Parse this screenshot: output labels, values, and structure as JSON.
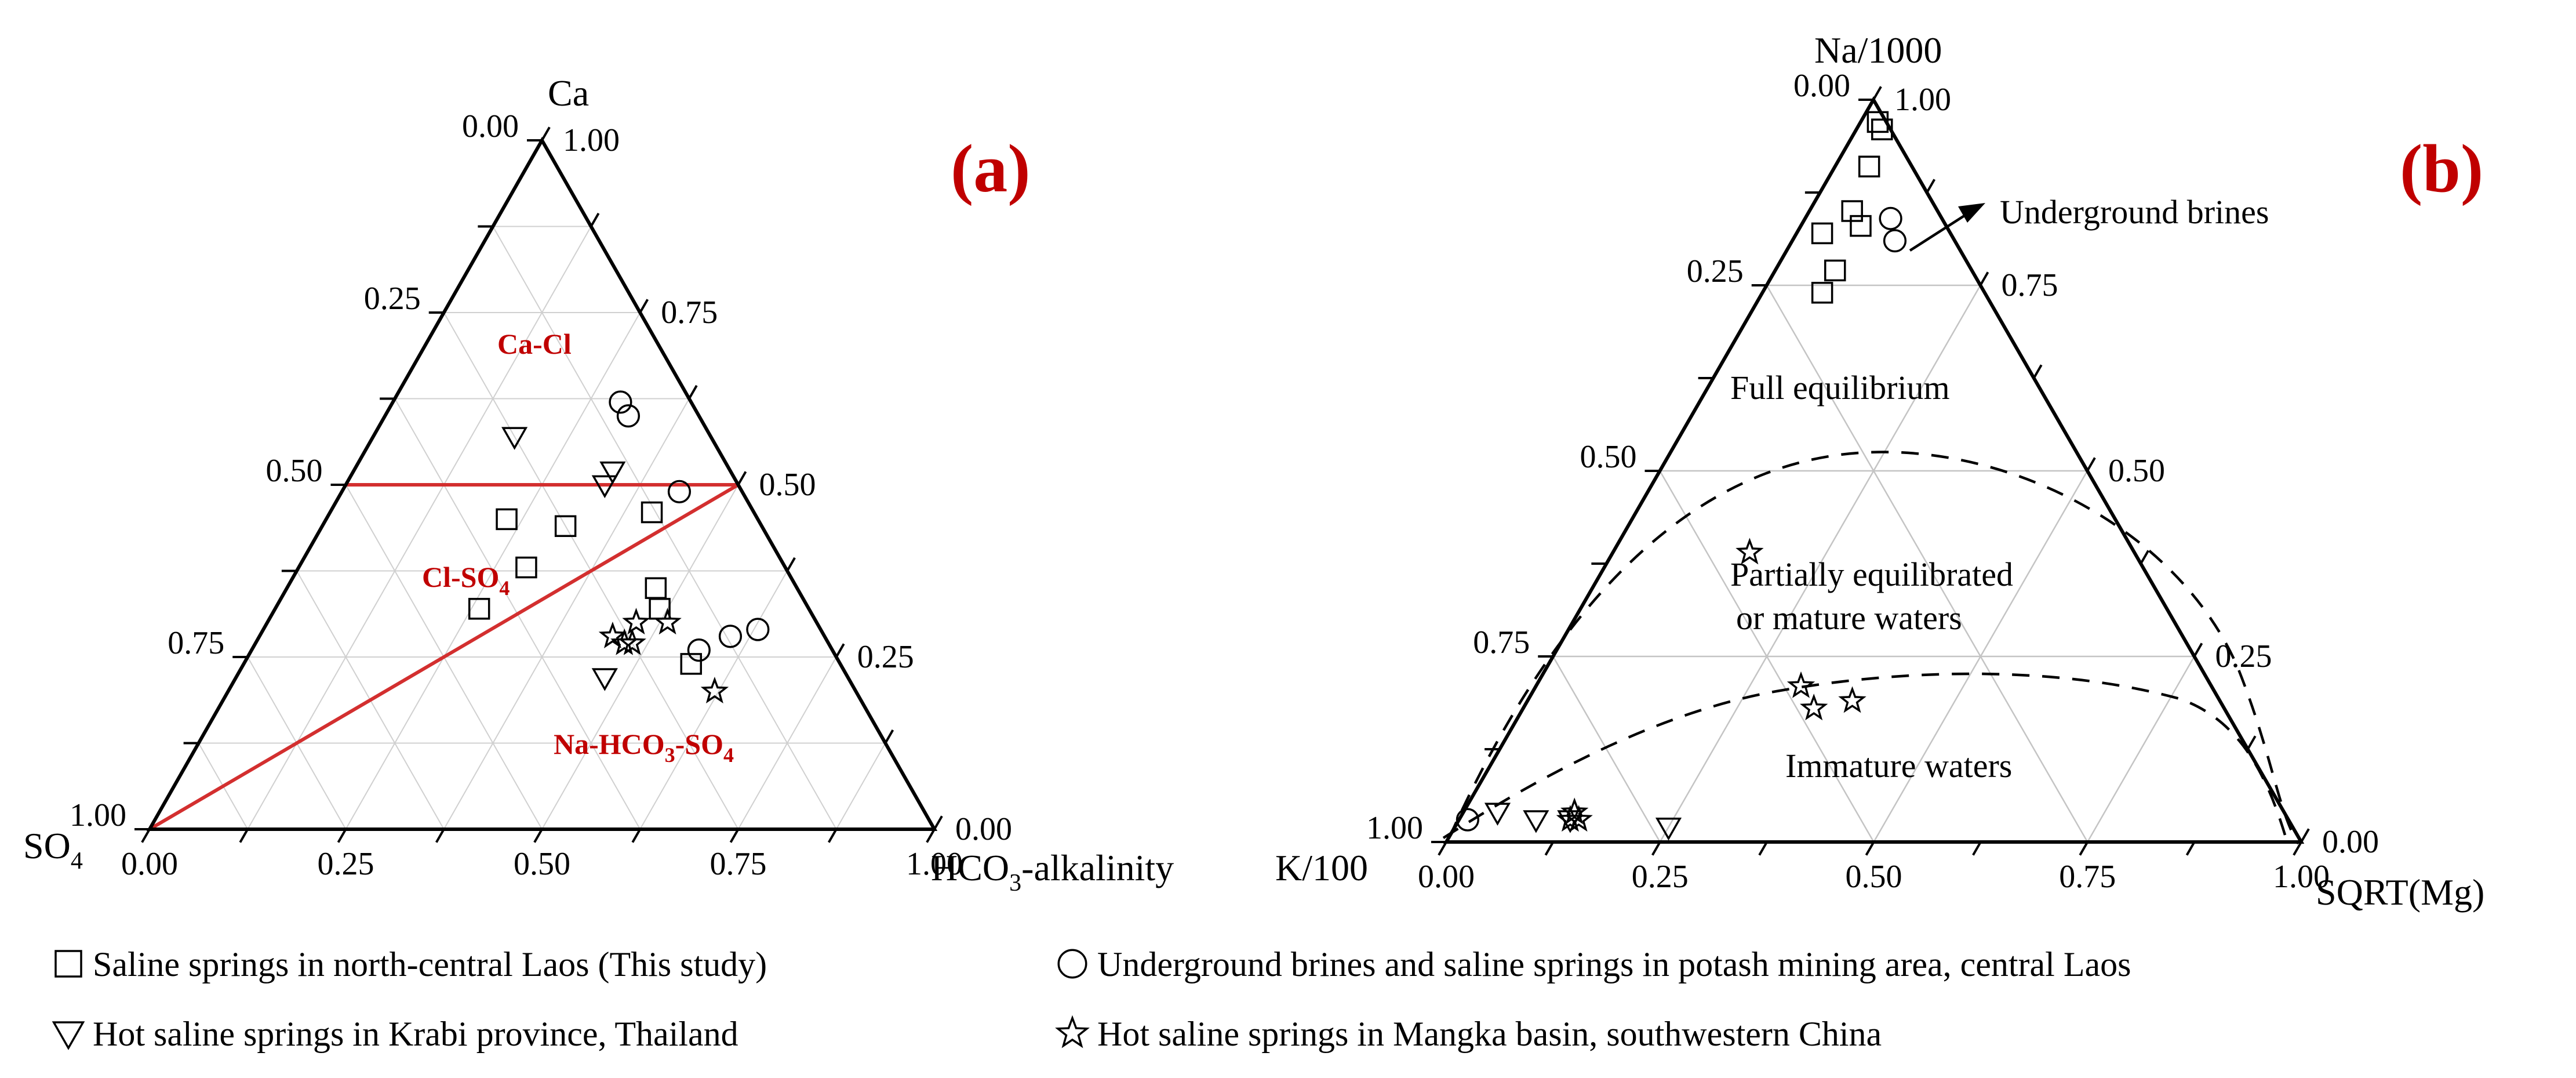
{
  "chart_data": [
    {
      "type": "ternary-scatter",
      "panel": "(a)",
      "axes": {
        "top": "Ca",
        "left": "SO4",
        "right": "HCO3-alkalinity",
        "left_edge_ticks": [
          "0.00",
          "0.25",
          "0.50",
          "0.75",
          "1.00"
        ],
        "right_edge_ticks": [
          "1.00",
          "0.75",
          "0.50",
          "0.25",
          "0.00"
        ],
        "bottom_edge_ticks": [
          "0.00",
          "0.25",
          "0.50",
          "0.75",
          "1.00"
        ]
      },
      "regions": [
        {
          "label": "Ca-Cl"
        },
        {
          "label": "Cl-SO",
          "sub": "4"
        },
        {
          "label": "Na-HCO",
          "sub": "3",
          "tail": "-SO",
          "sub2": "4"
        }
      ],
      "boundary_lines": [
        {
          "from": [
            0.5,
            0.5,
            0.0
          ],
          "to": [
            0.5,
            0.0,
            0.5
          ]
        },
        {
          "from": [
            0.0,
            1.0,
            0.0
          ],
          "to": [
            0.5,
            0.0,
            0.5
          ]
        }
      ],
      "series": [
        {
          "name": "Saline springs in north-central Laos (This study)",
          "marker": "square",
          "points": [
            [
              0.46,
              0.41
            ],
            [
              0.44,
              0.31
            ],
            [
              0.45,
              0.23
            ],
            [
              0.38,
              0.29
            ],
            [
              0.35,
              0.47
            ],
            [
              0.32,
              0.26
            ],
            [
              0.32,
              0.49
            ],
            [
              0.24,
              0.57
            ]
          ]
        },
        {
          "name": "Underground brines and saline springs in potash mining area, central Laos",
          "marker": "circle",
          "points": [
            [
              0.6,
              0.31
            ],
            [
              0.62,
              0.29
            ],
            [
              0.49,
              0.43
            ],
            [
              0.28,
              0.6
            ],
            [
              0.29,
              0.63
            ],
            [
              0.26,
              0.57
            ]
          ]
        },
        {
          "name": "Hot saline springs in Krabi province, Thailand",
          "marker": "triangle-down",
          "points": [
            [
              0.57,
              0.18
            ],
            [
              0.52,
              0.33
            ],
            [
              0.5,
              0.33
            ],
            [
              0.22,
              0.47
            ]
          ]
        },
        {
          "name": "Hot saline springs in Mangka basin, southwestern China",
          "marker": "star",
          "points": [
            [
              0.27,
              0.47
            ],
            [
              0.3,
              0.47
            ],
            [
              0.28,
              0.45
            ],
            [
              0.27,
              0.48
            ],
            [
              0.3,
              0.51
            ],
            [
              0.2,
              0.62
            ]
          ]
        }
      ]
    },
    {
      "type": "ternary-scatter",
      "panel": "(b)",
      "axes": {
        "top": "Na/1000",
        "left": "K/100",
        "right": "SQRT(Mg)",
        "left_edge_ticks": [
          "0.00",
          "0.25",
          "0.50",
          "0.75",
          "1.00"
        ],
        "right_edge_ticks": [
          "1.00",
          "0.75",
          "0.50",
          "0.25",
          "0.00"
        ],
        "bottom_edge_ticks": [
          "0.00",
          "0.25",
          "0.50",
          "0.75",
          "1.00"
        ]
      },
      "zones": [
        "Full equilibrium",
        "Partially equilibrated",
        "or mature waters",
        "Immature waters"
      ],
      "annotation": "Underground brines",
      "series": [
        {
          "name": "Saline springs in north-central Laos (This study)",
          "marker": "square",
          "points": [
            [
              0.97,
              0.02
            ],
            [
              0.96,
              0.03
            ],
            [
              0.91,
              0.04
            ],
            [
              0.82,
              0.03
            ],
            [
              0.85,
              0.05
            ],
            [
              0.77,
              0.07
            ],
            [
              0.74,
              0.07
            ],
            [
              0.83,
              0.07
            ]
          ]
        },
        {
          "name": "Underground brines and saline springs in potash mining area, central Laos",
          "marker": "circle",
          "points": [
            [
              0.84,
              0.1
            ],
            [
              0.81,
              0.12
            ],
            [
              0.03,
              0.01
            ]
          ]
        },
        {
          "name": "Hot saline springs in Krabi province, Thailand",
          "marker": "triangle-down",
          "points": [
            [
              0.02,
              0.25
            ],
            [
              0.04,
              0.04
            ],
            [
              0.03,
              0.09
            ],
            [
              0.03,
              0.13
            ]
          ]
        },
        {
          "name": "Hot saline springs in Mangka basin, southwestern China",
          "marker": "star",
          "points": [
            [
              0.39,
              0.16
            ],
            [
              0.18,
              0.34
            ],
            [
              0.21,
              0.31
            ],
            [
              0.19,
              0.38
            ],
            [
              0.04,
              0.13
            ],
            [
              0.03,
              0.13
            ],
            [
              0.03,
              0.14
            ]
          ]
        }
      ]
    }
  ],
  "legend": [
    {
      "marker": "square",
      "label": "Saline springs in north-central Laos (This study)"
    },
    {
      "marker": "circle",
      "label": "Underground brines and saline springs in potash mining area, central Laos"
    },
    {
      "marker": "triangle-down",
      "label": "Hot saline springs in Krabi province, Thailand"
    },
    {
      "marker": "star",
      "label": "Hot saline springs in Mangka basin, southwestern China"
    }
  ],
  "colors": {
    "region_label": "#c00000",
    "boundary_line": "#d32f2f",
    "grid": "#d0d0d0",
    "axis": "#000000"
  }
}
